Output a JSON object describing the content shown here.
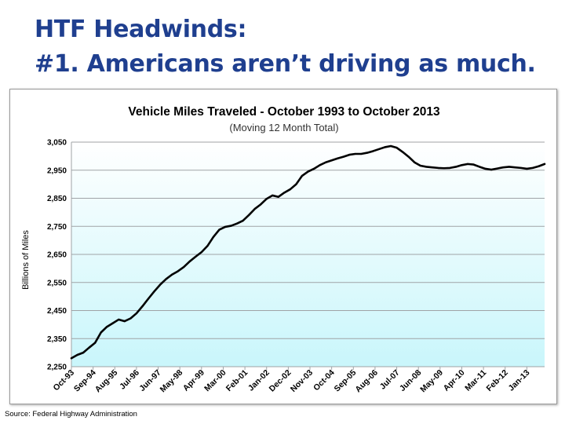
{
  "slide": {
    "title_line1": "HTF Headwinds:",
    "title_line2": "#1. Americans aren’t driving as much.",
    "source": "Source: Federal Highway Administration"
  },
  "colors": {
    "title": "#1f3f8f",
    "line": "#000000",
    "grid": "#9fa3a6",
    "plot_bg_top": "#ffffff",
    "plot_bg_bottom": "#c9f6fb"
  },
  "chart_data": {
    "type": "line",
    "title": "Vehicle Miles Traveled - October 1993 to October 2013",
    "subtitle": "(Moving 12 Month Total)",
    "xlabel": "",
    "ylabel": "Billions of Miles",
    "ylim": [
      2250,
      3050
    ],
    "yticks": [
      2250,
      2350,
      2450,
      2550,
      2650,
      2750,
      2850,
      2950,
      3050
    ],
    "ytick_labels": [
      "2,250",
      "2,350",
      "2,450",
      "2,550",
      "2,650",
      "2,750",
      "2,850",
      "2,950",
      "3,050"
    ],
    "xlim": [
      0,
      240
    ],
    "x_tick_labels": [
      "Oct-93",
      "Sep-94",
      "Aug-95",
      "Jul-96",
      "Jun-97",
      "May-98",
      "Apr-99",
      "Mar-00",
      "Feb-01",
      "Jan-02",
      "Dec-02",
      "Nov-03",
      "Oct-04",
      "Sep-05",
      "Aug-06",
      "Jul-07",
      "Jun-08",
      "May-09",
      "Apr-10",
      "Mar-11",
      "Feb-12",
      "Jan-13"
    ],
    "x_tick_positions": [
      0,
      11,
      22,
      33,
      44,
      55,
      66,
      77,
      88,
      99,
      110,
      121,
      132,
      143,
      154,
      165,
      176,
      187,
      198,
      209,
      220,
      231
    ],
    "grid": true,
    "legend": "none",
    "series": [
      {
        "name": "Vehicle Miles Traveled",
        "x": [
          0,
          3,
          6,
          9,
          12,
          15,
          18,
          21,
          24,
          27,
          30,
          33,
          36,
          39,
          42,
          45,
          48,
          51,
          54,
          57,
          60,
          63,
          66,
          69,
          72,
          75,
          78,
          81,
          84,
          87,
          90,
          93,
          96,
          99,
          102,
          105,
          108,
          111,
          114,
          117,
          120,
          123,
          126,
          129,
          132,
          135,
          138,
          141,
          144,
          147,
          150,
          153,
          156,
          159,
          162,
          165,
          168,
          171,
          174,
          177,
          180,
          183,
          186,
          189,
          192,
          195,
          198,
          201,
          204,
          207,
          210,
          213,
          216,
          219,
          222,
          225,
          228,
          231,
          234,
          237,
          240
        ],
        "values": [
          2280,
          2292,
          2300,
          2318,
          2335,
          2372,
          2392,
          2405,
          2418,
          2412,
          2422,
          2440,
          2465,
          2492,
          2518,
          2542,
          2562,
          2578,
          2590,
          2605,
          2625,
          2642,
          2658,
          2680,
          2712,
          2738,
          2748,
          2752,
          2760,
          2770,
          2790,
          2812,
          2828,
          2848,
          2860,
          2855,
          2870,
          2882,
          2900,
          2930,
          2945,
          2955,
          2968,
          2978,
          2985,
          2992,
          2998,
          3005,
          3008,
          3008,
          3012,
          3018,
          3025,
          3032,
          3036,
          3030,
          3015,
          2998,
          2978,
          2966,
          2962,
          2960,
          2958,
          2957,
          2958,
          2962,
          2968,
          2972,
          2970,
          2962,
          2955,
          2952,
          2956,
          2960,
          2962,
          2960,
          2958,
          2955,
          2958,
          2964,
          2972
        ]
      }
    ]
  }
}
